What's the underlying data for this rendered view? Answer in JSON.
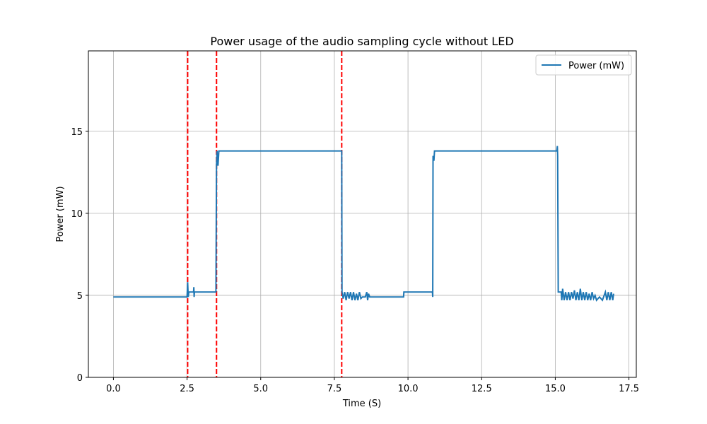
{
  "chart_data": {
    "type": "line",
    "title": "Power usage of the audio sampling cycle without LED",
    "xlabel": "Time (S)",
    "ylabel": "Power (mW)",
    "xlim": [
      -0.85,
      17.75
    ],
    "ylim": [
      0,
      19.9
    ],
    "x_ticks": [
      {
        "value": 0.0,
        "label": "0.0"
      },
      {
        "value": 2.5,
        "label": "2.5"
      },
      {
        "value": 5.0,
        "label": "5.0"
      },
      {
        "value": 7.5,
        "label": "7.5"
      },
      {
        "value": 10.0,
        "label": "10.0"
      },
      {
        "value": 12.5,
        "label": "12.5"
      },
      {
        "value": 15.0,
        "label": "15.0"
      },
      {
        "value": 17.5,
        "label": "17.5"
      }
    ],
    "y_ticks": [
      {
        "value": 0,
        "label": "0"
      },
      {
        "value": 5,
        "label": "5"
      },
      {
        "value": 10,
        "label": "10"
      },
      {
        "value": 15,
        "label": "15"
      }
    ],
    "grid": true,
    "legend": {
      "position": "top-right",
      "entries": [
        {
          "label": "Power (mW)",
          "color": "#1f77b4"
        }
      ]
    },
    "series": [
      {
        "name": "Power (mW)",
        "color": "#1f77b4",
        "points": [
          [
            0.0,
            4.9
          ],
          [
            2.5,
            4.9
          ],
          [
            2.52,
            5.8
          ],
          [
            2.54,
            4.9
          ],
          [
            2.56,
            5.2
          ],
          [
            2.72,
            5.2
          ],
          [
            2.73,
            5.5
          ],
          [
            2.74,
            4.9
          ],
          [
            2.75,
            5.2
          ],
          [
            3.48,
            5.2
          ],
          [
            3.5,
            13.0
          ],
          [
            3.52,
            13.8
          ],
          [
            3.55,
            12.9
          ],
          [
            3.58,
            13.8
          ],
          [
            7.75,
            13.8
          ],
          [
            7.76,
            5.2
          ],
          [
            7.8,
            4.8
          ],
          [
            7.85,
            5.2
          ],
          [
            7.9,
            4.7
          ],
          [
            7.95,
            5.2
          ],
          [
            8.0,
            4.8
          ],
          [
            8.05,
            5.2
          ],
          [
            8.1,
            4.7
          ],
          [
            8.15,
            5.2
          ],
          [
            8.2,
            4.7
          ],
          [
            8.25,
            5.1
          ],
          [
            8.3,
            4.7
          ],
          [
            8.35,
            5.2
          ],
          [
            8.4,
            4.8
          ],
          [
            8.45,
            4.9
          ],
          [
            8.55,
            4.9
          ],
          [
            8.6,
            5.2
          ],
          [
            8.63,
            4.7
          ],
          [
            8.66,
            5.1
          ],
          [
            8.7,
            4.9
          ],
          [
            9.85,
            4.9
          ],
          [
            9.86,
            5.2
          ],
          [
            10.83,
            5.2
          ],
          [
            10.84,
            4.9
          ],
          [
            10.85,
            13.5
          ],
          [
            10.88,
            13.2
          ],
          [
            10.9,
            13.8
          ],
          [
            15.05,
            13.8
          ],
          [
            15.07,
            14.1
          ],
          [
            15.08,
            13.5
          ],
          [
            15.1,
            5.2
          ],
          [
            15.2,
            5.2
          ],
          [
            15.22,
            4.7
          ],
          [
            15.25,
            5.4
          ],
          [
            15.3,
            4.7
          ],
          [
            15.35,
            5.2
          ],
          [
            15.4,
            4.7
          ],
          [
            15.45,
            5.2
          ],
          [
            15.5,
            4.7
          ],
          [
            15.55,
            5.2
          ],
          [
            15.6,
            4.8
          ],
          [
            15.65,
            5.3
          ],
          [
            15.7,
            4.7
          ],
          [
            15.75,
            5.2
          ],
          [
            15.8,
            4.7
          ],
          [
            15.85,
            5.4
          ],
          [
            15.9,
            4.7
          ],
          [
            15.95,
            5.2
          ],
          [
            16.0,
            4.7
          ],
          [
            16.05,
            5.2
          ],
          [
            16.1,
            4.7
          ],
          [
            16.15,
            5.1
          ],
          [
            16.2,
            4.7
          ],
          [
            16.25,
            5.2
          ],
          [
            16.3,
            4.8
          ],
          [
            16.35,
            5.0
          ],
          [
            16.4,
            4.7
          ],
          [
            16.5,
            4.9
          ],
          [
            16.6,
            4.7
          ],
          [
            16.7,
            5.2
          ],
          [
            16.75,
            4.7
          ],
          [
            16.8,
            5.2
          ],
          [
            16.85,
            4.7
          ],
          [
            16.9,
            5.2
          ],
          [
            16.95,
            4.7
          ],
          [
            16.98,
            5.1
          ]
        ]
      }
    ],
    "vlines": [
      {
        "x": 2.52,
        "color": "#ff0000",
        "style": "dashed"
      },
      {
        "x": 3.5,
        "color": "#ff0000",
        "style": "dashed"
      },
      {
        "x": 7.75,
        "color": "#ff0000",
        "style": "dashed"
      }
    ]
  }
}
